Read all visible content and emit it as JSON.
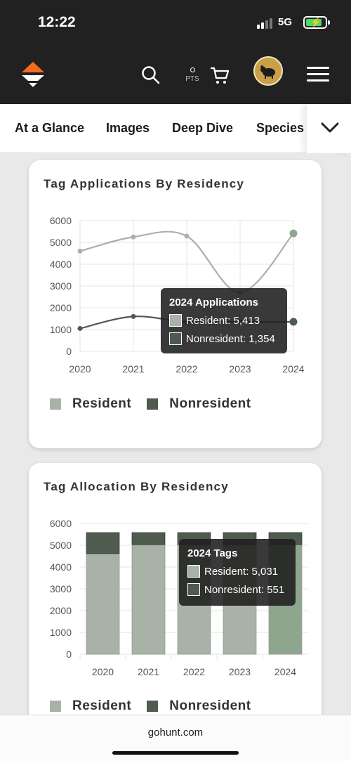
{
  "status": {
    "time": "12:22",
    "network": "5G"
  },
  "header": {
    "pts_label": "PTS"
  },
  "tabs": [
    "At a Glance",
    "Images",
    "Deep Dive",
    "Species"
  ],
  "colors": {
    "resident": "#a9b2a6",
    "nonresident": "#4f5b4e",
    "resident_highlight": "#8fa68e",
    "header_bg": "#212121",
    "logo": "#f26b21"
  },
  "icons": [
    "logo-icon",
    "search-icon",
    "cart-icon",
    "avatar",
    "menu-icon",
    "chevron-down-icon"
  ],
  "applications_card": {
    "title": "Tag Applications By Residency",
    "tooltip": {
      "title": "2024 Applications",
      "rows": [
        "Resident: 5,413",
        "Nonresident: 1,354"
      ]
    },
    "legend": [
      "Resident",
      "Nonresident"
    ]
  },
  "allocation_card": {
    "title": "Tag Allocation By Residency",
    "tooltip": {
      "title": "2024 Tags",
      "rows": [
        "Resident: 5,031",
        "Nonresident: 551"
      ]
    },
    "legend": [
      "Resident",
      "Nonresident"
    ]
  },
  "chart_data": [
    {
      "type": "line",
      "title": "Tag Applications By Residency",
      "x": [
        "2020",
        "2021",
        "2022",
        "2023",
        "2024"
      ],
      "ylim": [
        0,
        6000
      ],
      "yticks": [
        "0",
        "1000",
        "2000",
        "3000",
        "4000",
        "5000",
        "6000"
      ],
      "grid": true,
      "legend_position": "bottom",
      "series": [
        {
          "name": "Resident",
          "values": [
            4600,
            5250,
            5290,
            2700,
            5413
          ]
        },
        {
          "name": "Nonresident",
          "values": [
            1050,
            1600,
            1350,
            1350,
            1354
          ]
        }
      ]
    },
    {
      "type": "bar",
      "stacked": true,
      "title": "Tag Allocation By Residency",
      "categories": [
        "2020",
        "2021",
        "2022",
        "2023",
        "2024"
      ],
      "ylim": [
        0,
        6000
      ],
      "yticks": [
        "0",
        "1000",
        "2000",
        "3000",
        "4000",
        "5000",
        "6000"
      ],
      "grid": true,
      "legend_position": "bottom",
      "series": [
        {
          "name": "Resident",
          "values": [
            4620,
            5030,
            5030,
            5030,
            5031
          ]
        },
        {
          "name": "Nonresident",
          "values": [
            960,
            550,
            550,
            550,
            551
          ]
        }
      ]
    }
  ],
  "browser": {
    "url": "gohunt.com"
  }
}
